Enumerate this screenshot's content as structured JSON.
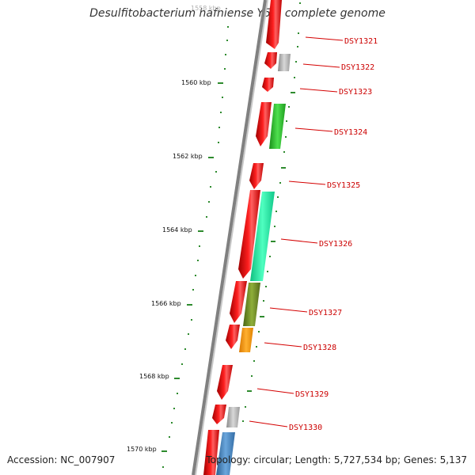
{
  "header": {
    "title": "Desulfitobacterium hafniense Y51, complete genome"
  },
  "footer": {
    "accession": "Accession: NC_007907",
    "summary": "Topology: circular; Length: 5,727,534 bp; Genes: 5,137"
  },
  "map": {
    "backbone_color": "#808080",
    "tick_color": "#2e8b2e",
    "kbp_labels": [
      "1558 kbp",
      "1560 kbp",
      "1562 kbp",
      "1564 kbp",
      "1566 kbp",
      "1568 kbp",
      "1570 kbp"
    ],
    "gene_labels": [
      "DSY1321",
      "DSY1322",
      "DSY1323",
      "DSY1324",
      "DSY1325",
      "DSY1326",
      "DSY1327",
      "DSY1328",
      "DSY1329",
      "DSY1330"
    ],
    "label_color": "#cc0000",
    "feature_colors": {
      "cds": "#ff1010",
      "gray": "#b8b8b8",
      "green": "#2ecc2e",
      "aqua": "#18f0a8",
      "olive": "#6b8e23",
      "orange": "#ff9900",
      "blue": "#4a8cc8"
    }
  }
}
